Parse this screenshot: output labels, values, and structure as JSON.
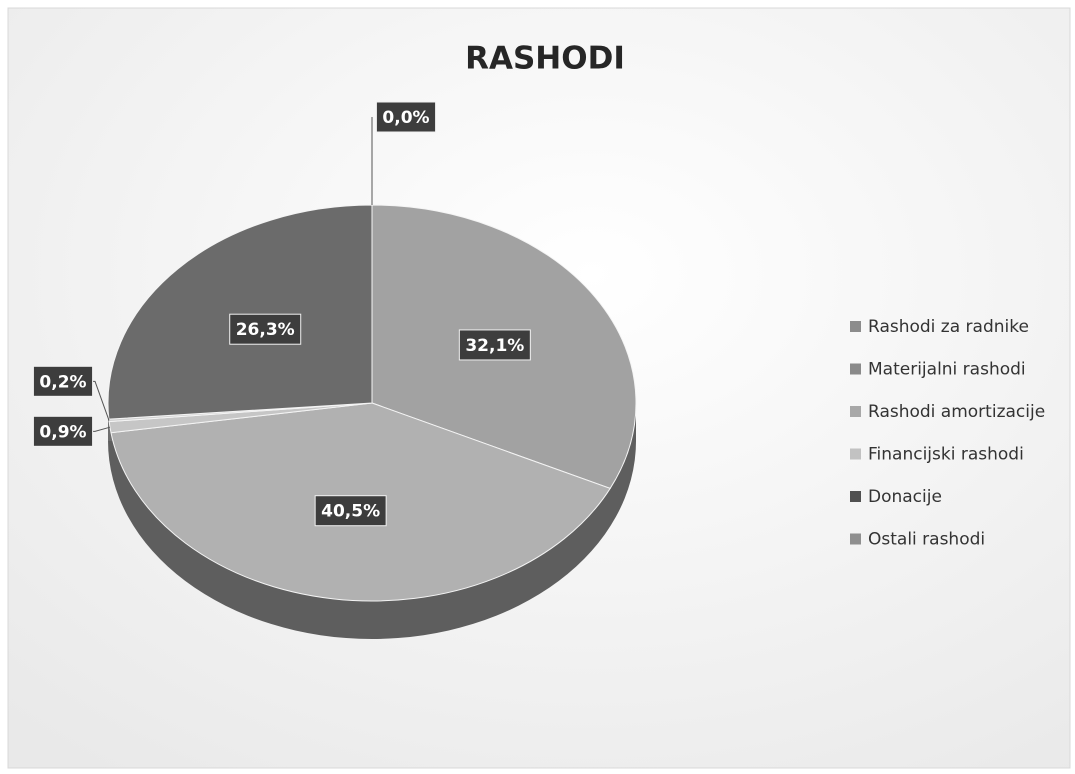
{
  "chart_data": {
    "type": "pie",
    "title": "RASHODI",
    "categories": [
      "Rashodi za radnike",
      "Materijalni rashodi",
      "Rashodi amortizacije",
      "Financijski rashodi",
      "Donacije",
      "Ostali rashodi"
    ],
    "values": [
      32.1,
      40.5,
      0.9,
      0.2,
      26.3,
      0.0
    ],
    "value_labels": [
      "32,1%",
      "40,5%",
      "0,9%",
      "0,2%",
      "26,3%",
      "0,0%"
    ],
    "colors": [
      "#a2a2a2",
      "#b1b1b1",
      "#c6c6c6",
      "#d2d2d2",
      "#6b6b6b",
      "#8e8e8e"
    ],
    "legend_colors": [
      "#8c8c8c",
      "#8a8a8a",
      "#a8a8a8",
      "#c2c2c2",
      "#505050",
      "#8f8f8f"
    ],
    "legend": "right"
  }
}
